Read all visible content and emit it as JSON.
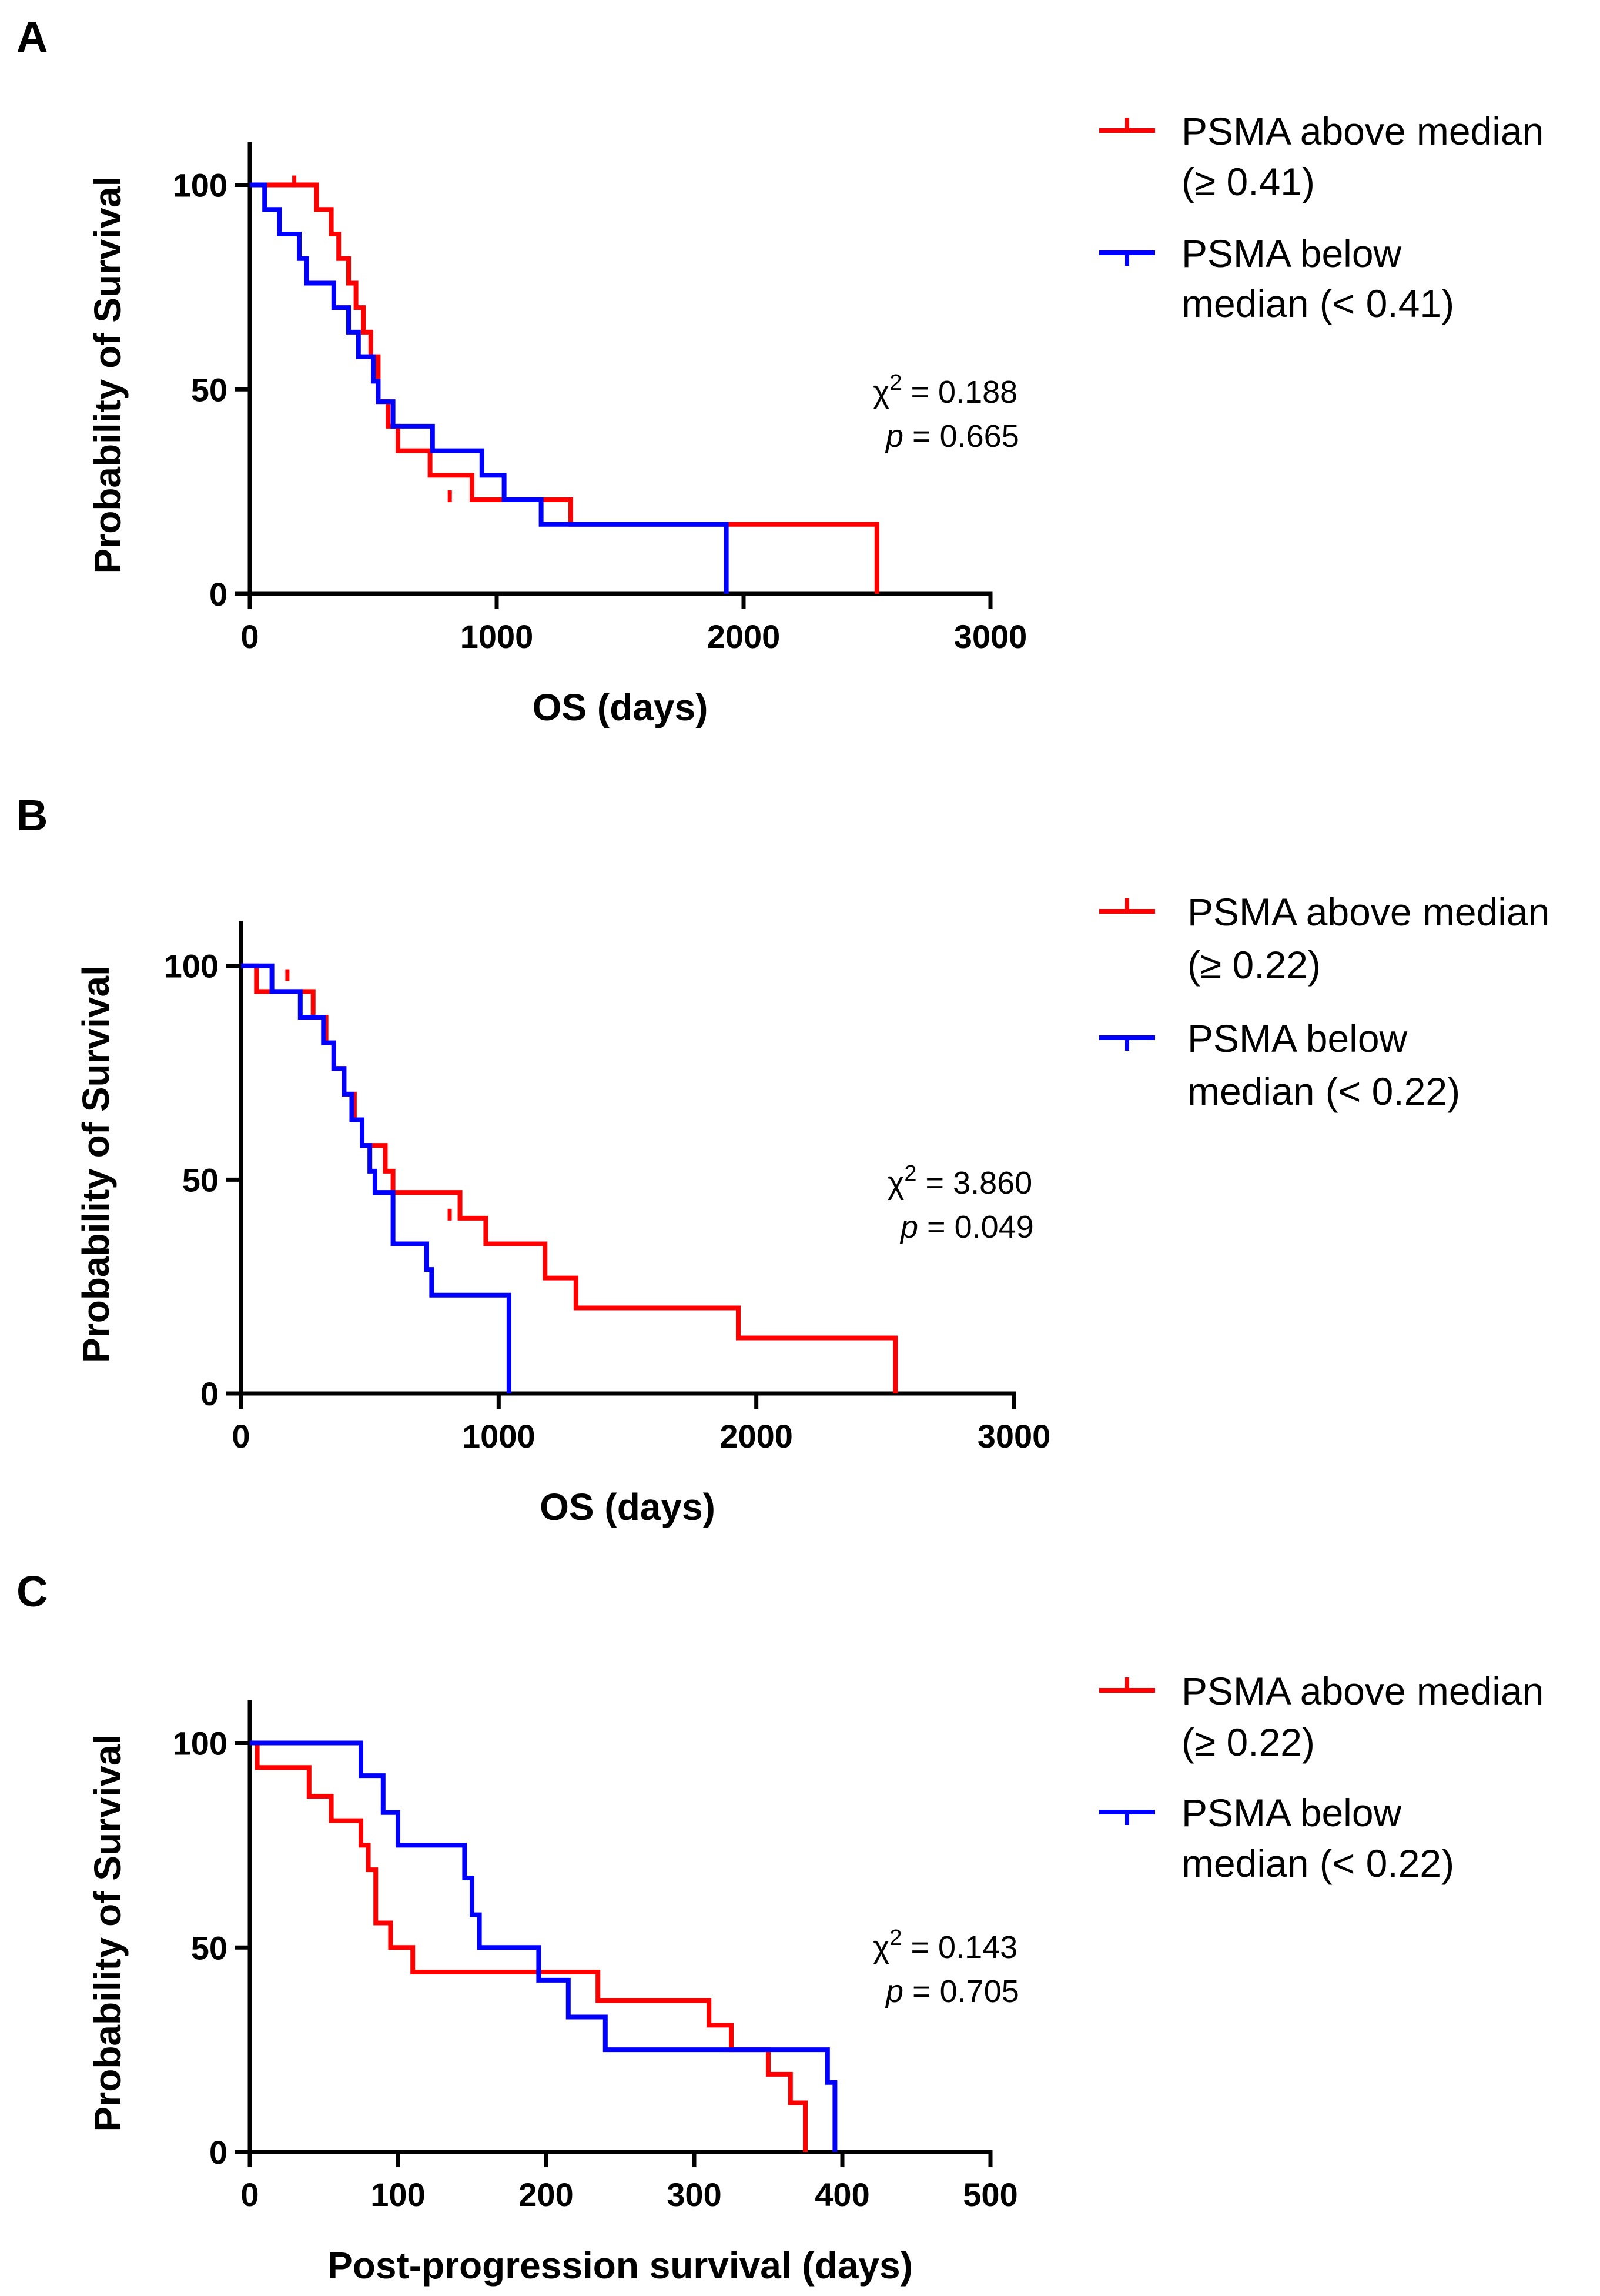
{
  "chart_data": [
    {
      "type": "line",
      "panel_label": "A",
      "xlabel": "OS (days)",
      "ylabel": "Probability of Survival",
      "xlim": [
        0,
        3000
      ],
      "ylim": [
        0,
        110
      ],
      "xticks": [
        "0",
        "1000",
        "2000",
        "3000"
      ],
      "yticks": [
        "0",
        "50",
        "100"
      ],
      "grid": false,
      "legend_position": "top-right",
      "annotation": {
        "stat_symbol": "χ",
        "stat_exp": "2",
        "stat_value": " = 0.188",
        "p_symbol": "p",
        "p_value": " = 0.665"
      },
      "series": [
        {
          "name_lines": [
            "PSMA above median",
            "(≥ 0.41)"
          ],
          "color": "#ff0000",
          "x": [
            0,
            270,
            330,
            360,
            400,
            430,
            460,
            490,
            520,
            560,
            600,
            730,
            900,
            1300,
            2540
          ],
          "y": [
            100,
            94,
            88,
            82,
            76,
            70,
            64,
            58,
            47,
            41,
            35,
            29,
            23,
            17,
            8
          ],
          "end_x": 2540,
          "censored": [
            [
              180,
              100
            ],
            [
              810,
              23
            ]
          ]
        },
        {
          "name_lines": [
            "PSMA below",
            "median (< 0.41)"
          ],
          "color": "#0000ff",
          "x": [
            0,
            60,
            120,
            200,
            230,
            340,
            400,
            440,
            500,
            520,
            580,
            740,
            940,
            1030,
            1180,
            1930
          ],
          "y": [
            100,
            94,
            88,
            82,
            76,
            70,
            64,
            58,
            52,
            47,
            41,
            35,
            29,
            23,
            17,
            6
          ],
          "end_x": 1930,
          "censored": []
        }
      ]
    },
    {
      "type": "line",
      "panel_label": "B",
      "xlabel": "OS (days)",
      "ylabel": "Probability of Survival",
      "xlim": [
        0,
        3000
      ],
      "ylim": [
        0,
        110
      ],
      "xticks": [
        "0",
        "1000",
        "2000",
        "3000"
      ],
      "yticks": [
        "0",
        "50",
        "100"
      ],
      "grid": false,
      "legend_position": "top-right",
      "annotation": {
        "stat_symbol": "χ",
        "stat_exp": "2",
        "stat_value": " = 3.860",
        "p_symbol": "p",
        "p_value": " = 0.049"
      },
      "series": [
        {
          "name_lines": [
            "PSMA above median",
            "(≥ 0.22)"
          ],
          "color": "#ff0000",
          "x": [
            0,
            60,
            280,
            330,
            360,
            400,
            440,
            470,
            560,
            590,
            850,
            950,
            1180,
            1300,
            1930,
            2540
          ],
          "y": [
            100,
            94,
            88,
            82,
            76,
            70,
            64,
            58,
            52,
            47,
            41,
            35,
            27,
            20,
            13,
            6
          ],
          "end_x": 2540,
          "censored": [
            [
              180,
              97
            ],
            [
              810,
              41
            ]
          ]
        },
        {
          "name_lines": [
            "PSMA below",
            "median (< 0.22)"
          ],
          "color": "#0000ff",
          "x": [
            0,
            120,
            230,
            320,
            360,
            400,
            430,
            470,
            500,
            520,
            590,
            720,
            740,
            1040
          ],
          "y": [
            100,
            94,
            88,
            82,
            76,
            70,
            64,
            58,
            52,
            47,
            35,
            29,
            23,
            17
          ],
          "end_x": 1040,
          "censored": []
        }
      ]
    },
    {
      "type": "line",
      "panel_label": "C",
      "xlabel": "Post-progression survival (days)",
      "ylabel": "Probability of Survival",
      "xlim": [
        0,
        500
      ],
      "ylim": [
        0,
        110
      ],
      "xticks": [
        "0",
        "100",
        "200",
        "300",
        "400",
        "500"
      ],
      "yticks": [
        "0",
        "50",
        "100"
      ],
      "grid": false,
      "legend_position": "top-right",
      "annotation": {
        "stat_symbol": "χ",
        "stat_exp": "2",
        "stat_value": " = 0.143",
        "p_symbol": "p",
        "p_value": " = 0.705"
      },
      "series": [
        {
          "name_lines": [
            "PSMA above median",
            "(≥ 0.22)"
          ],
          "color": "#ff0000",
          "x": [
            0,
            5,
            40,
            55,
            75,
            80,
            85,
            95,
            110,
            235,
            310,
            325,
            350,
            365,
            375
          ],
          "y": [
            100,
            94,
            87,
            81,
            75,
            69,
            56,
            50,
            44,
            37,
            31,
            25,
            19,
            12,
            6
          ],
          "end_x": 375,
          "censored": []
        },
        {
          "name_lines": [
            "PSMA below",
            "median (< 0.22)"
          ],
          "color": "#0000ff",
          "x": [
            0,
            75,
            90,
            100,
            145,
            150,
            155,
            195,
            215,
            240,
            390
          ],
          "y": [
            100,
            92,
            83,
            75,
            67,
            58,
            50,
            42,
            33,
            25,
            17
          ],
          "end_x": 395,
          "censored": []
        }
      ]
    }
  ]
}
